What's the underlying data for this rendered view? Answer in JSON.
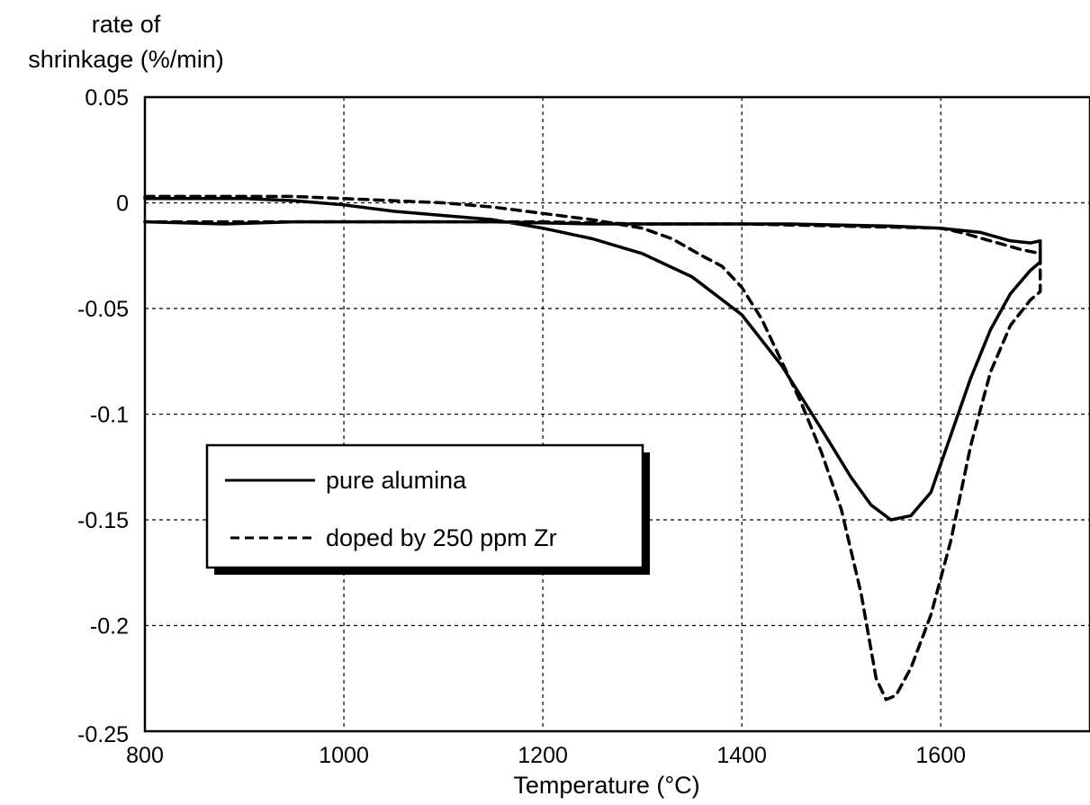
{
  "chart_data": {
    "type": "line",
    "title": "",
    "xlabel": "Temperature (°C)",
    "ylabel_line1": "rate of",
    "ylabel_line2": "shrinkage (%/min)",
    "xlim": [
      800,
      1750
    ],
    "ylim": [
      -0.25,
      0.05
    ],
    "x_ticks": [
      800,
      1000,
      1200,
      1400,
      1600
    ],
    "x_tick_labels": [
      "800",
      "1000",
      "1200",
      "1400",
      "1600"
    ],
    "y_ticks": [
      0.05,
      0,
      -0.05,
      -0.1,
      -0.15,
      -0.2,
      -0.25
    ],
    "y_tick_labels": [
      "0.05",
      "0",
      "-0.05",
      "-0.1",
      "-0.15",
      "-0.2",
      "-0.25"
    ],
    "grid": true,
    "legend_position": "center-left",
    "series": [
      {
        "name": "pure alumina",
        "style": "solid",
        "color": "#000000",
        "points": [
          [
            800,
            0.002
          ],
          [
            850,
            0.002
          ],
          [
            900,
            0.002
          ],
          [
            950,
            0.001
          ],
          [
            1000,
            -0.001
          ],
          [
            1050,
            -0.004
          ],
          [
            1100,
            -0.006
          ],
          [
            1150,
            -0.008
          ],
          [
            1200,
            -0.012
          ],
          [
            1250,
            -0.017
          ],
          [
            1300,
            -0.024
          ],
          [
            1350,
            -0.035
          ],
          [
            1400,
            -0.053
          ],
          [
            1440,
            -0.077
          ],
          [
            1480,
            -0.107
          ],
          [
            1510,
            -0.13
          ],
          [
            1530,
            -0.143
          ],
          [
            1550,
            -0.15
          ],
          [
            1570,
            -0.148
          ],
          [
            1590,
            -0.137
          ],
          [
            1610,
            -0.11
          ],
          [
            1630,
            -0.083
          ],
          [
            1650,
            -0.06
          ],
          [
            1670,
            -0.043
          ],
          [
            1690,
            -0.032
          ],
          [
            1700,
            -0.028
          ],
          [
            1700,
            -0.018
          ],
          [
            1690,
            -0.019
          ],
          [
            1670,
            -0.018
          ],
          [
            1640,
            -0.014
          ],
          [
            1600,
            -0.012
          ],
          [
            1550,
            -0.011
          ],
          [
            1450,
            -0.01
          ],
          [
            1350,
            -0.01
          ],
          [
            1250,
            -0.01
          ],
          [
            1150,
            -0.009
          ],
          [
            1050,
            -0.009
          ],
          [
            950,
            -0.009
          ],
          [
            880,
            -0.01
          ],
          [
            800,
            -0.009
          ]
        ]
      },
      {
        "name": "doped by 250 ppm Zr",
        "style": "dashed",
        "color": "#000000",
        "points": [
          [
            800,
            0.003
          ],
          [
            850,
            0.003
          ],
          [
            900,
            0.003
          ],
          [
            950,
            0.003
          ],
          [
            1000,
            0.002
          ],
          [
            1050,
            0.001
          ],
          [
            1100,
            0.0
          ],
          [
            1150,
            -0.002
          ],
          [
            1200,
            -0.005
          ],
          [
            1250,
            -0.008
          ],
          [
            1300,
            -0.012
          ],
          [
            1330,
            -0.017
          ],
          [
            1360,
            -0.025
          ],
          [
            1380,
            -0.03
          ],
          [
            1400,
            -0.04
          ],
          [
            1420,
            -0.055
          ],
          [
            1440,
            -0.075
          ],
          [
            1460,
            -0.095
          ],
          [
            1480,
            -0.118
          ],
          [
            1500,
            -0.145
          ],
          [
            1520,
            -0.185
          ],
          [
            1535,
            -0.225
          ],
          [
            1545,
            -0.235
          ],
          [
            1555,
            -0.233
          ],
          [
            1570,
            -0.22
          ],
          [
            1590,
            -0.195
          ],
          [
            1610,
            -0.16
          ],
          [
            1630,
            -0.115
          ],
          [
            1650,
            -0.08
          ],
          [
            1670,
            -0.058
          ],
          [
            1690,
            -0.046
          ],
          [
            1700,
            -0.042
          ],
          [
            1700,
            -0.024
          ],
          [
            1680,
            -0.022
          ],
          [
            1650,
            -0.018
          ],
          [
            1620,
            -0.014
          ],
          [
            1600,
            -0.012
          ],
          [
            1500,
            -0.011
          ],
          [
            1400,
            -0.01
          ],
          [
            1300,
            -0.01
          ],
          [
            1200,
            -0.009
          ],
          [
            1100,
            -0.009
          ],
          [
            1000,
            -0.009
          ],
          [
            900,
            -0.009
          ],
          [
            800,
            -0.009
          ]
        ]
      }
    ]
  }
}
